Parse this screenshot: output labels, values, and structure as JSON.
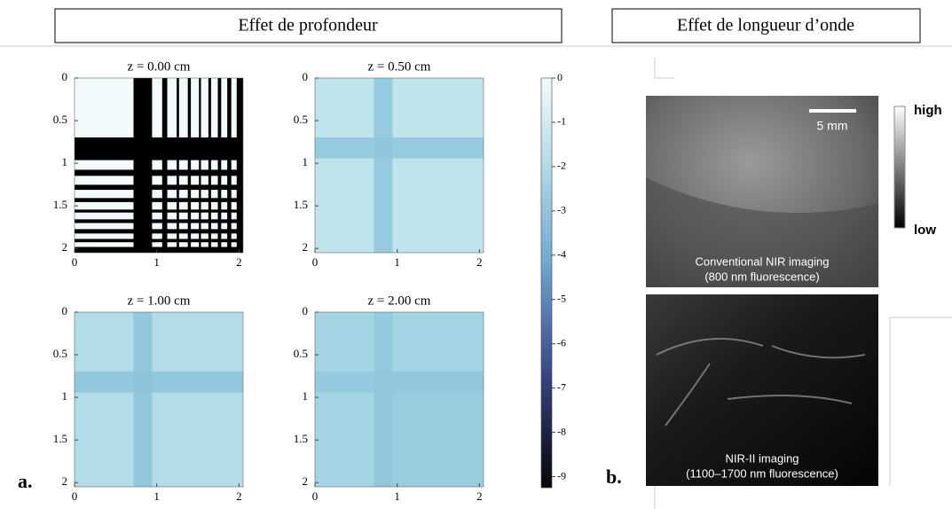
{
  "panel_a": {
    "header": "Effet de profondeur",
    "label": "a.",
    "plots": [
      {
        "title": "z = 0.00 cm"
      },
      {
        "title": "z = 0.50 cm"
      },
      {
        "title": "z = 1.00 cm"
      },
      {
        "title": "z = 2.00 cm"
      }
    ],
    "xlim": [
      0,
      2.05
    ],
    "xticks": [
      0,
      1,
      2
    ],
    "ylim": [
      0,
      2.05
    ],
    "yticks": [
      0,
      0.5,
      1,
      1.5,
      2
    ],
    "colorbar_lim": [
      -9.25,
      0
    ],
    "colorbar_ticks": [
      0,
      -1,
      -2,
      -3,
      -4,
      -5,
      -6,
      -7,
      -8,
      -9
    ]
  },
  "panel_b": {
    "header": "Effet de longueur d’onde",
    "label": "b.",
    "scale_bar": "5 mm",
    "colorbar": {
      "high": "high",
      "low": "low"
    },
    "images": [
      {
        "caption": [
          "Conventional NIR imaging",
          "(800 nm fluorescence)"
        ]
      },
      {
        "caption": [
          "NIR-II imaging",
          "(1100–1700 nm fluorescence)"
        ]
      }
    ]
  }
}
